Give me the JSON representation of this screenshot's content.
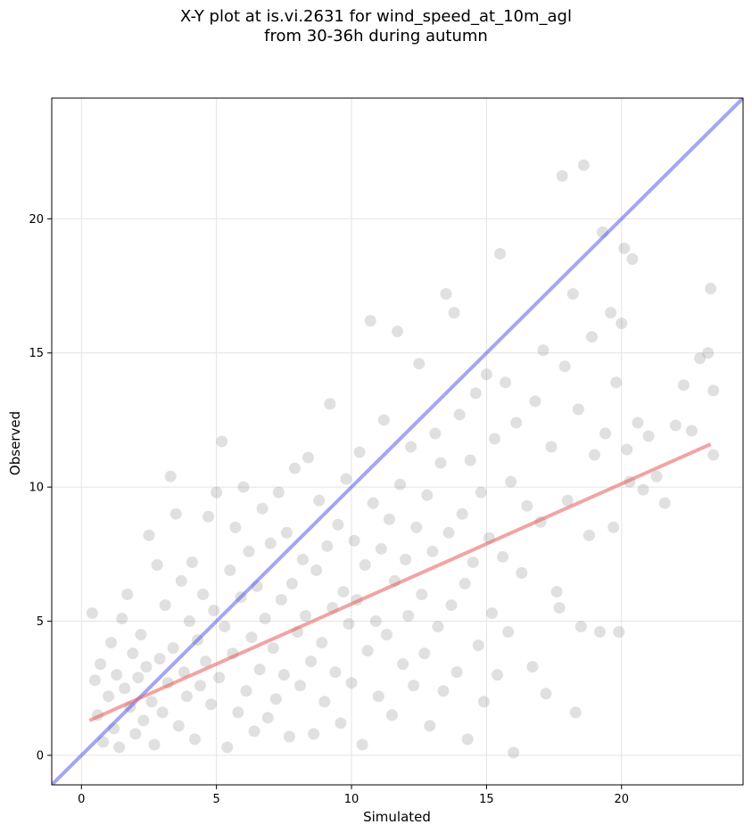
{
  "chart_data": {
    "type": "scatter",
    "title": "X-Y plot at is.vi.2631 for wind_speed_at_10m_agl",
    "subtitle": "from 30-36h during autumn",
    "xlabel": "Simulated",
    "ylabel": "Observed",
    "xlim": [
      -1.1,
      24.5
    ],
    "ylim": [
      -1.1,
      24.5
    ],
    "xticks": [
      0,
      5,
      10,
      15,
      20
    ],
    "yticks": [
      0,
      5,
      10,
      15,
      20
    ],
    "grid": true,
    "colors": {
      "points": "#555555",
      "identity_line": "#4b4bea",
      "fit_line": "#e85a5a"
    },
    "series": [
      {
        "kind": "points",
        "points_note_ref": "dense cloud of ~1500 points, sampled",
        "points": [
          [
            0.4,
            5.3
          ],
          [
            0.5,
            2.8
          ],
          [
            0.6,
            1.5
          ],
          [
            0.7,
            3.4
          ],
          [
            0.8,
            0.5
          ],
          [
            1.0,
            2.2
          ],
          [
            1.1,
            4.2
          ],
          [
            1.2,
            1.0
          ],
          [
            1.3,
            3.0
          ],
          [
            1.4,
            0.3
          ],
          [
            1.5,
            5.1
          ],
          [
            1.6,
            2.5
          ],
          [
            1.7,
            6.0
          ],
          [
            1.8,
            1.8
          ],
          [
            1.9,
            3.8
          ],
          [
            2.0,
            0.8
          ],
          [
            2.1,
            2.9
          ],
          [
            2.2,
            4.5
          ],
          [
            2.3,
            1.3
          ],
          [
            2.4,
            3.3
          ],
          [
            2.5,
            8.2
          ],
          [
            2.6,
            2.0
          ],
          [
            2.7,
            0.4
          ],
          [
            2.8,
            7.1
          ],
          [
            2.9,
            3.6
          ],
          [
            3.0,
            1.6
          ],
          [
            3.1,
            5.6
          ],
          [
            3.2,
            2.7
          ],
          [
            3.3,
            10.4
          ],
          [
            3.4,
            4.0
          ],
          [
            3.5,
            9.0
          ],
          [
            3.6,
            1.1
          ],
          [
            3.7,
            6.5
          ],
          [
            3.8,
            3.1
          ],
          [
            3.9,
            2.2
          ],
          [
            4.0,
            5.0
          ],
          [
            4.1,
            7.2
          ],
          [
            4.2,
            0.6
          ],
          [
            4.3,
            4.3
          ],
          [
            4.4,
            2.6
          ],
          [
            4.5,
            6.0
          ],
          [
            4.6,
            3.5
          ],
          [
            4.7,
            8.9
          ],
          [
            4.8,
            1.9
          ],
          [
            4.9,
            5.4
          ],
          [
            5.0,
            9.8
          ],
          [
            5.1,
            2.9
          ],
          [
            5.2,
            11.7
          ],
          [
            5.3,
            4.8
          ],
          [
            5.4,
            0.3
          ],
          [
            5.5,
            6.9
          ],
          [
            5.6,
            3.8
          ],
          [
            5.7,
            8.5
          ],
          [
            5.8,
            1.6
          ],
          [
            5.9,
            5.9
          ],
          [
            6.0,
            10.0
          ],
          [
            6.1,
            2.4
          ],
          [
            6.2,
            7.6
          ],
          [
            6.3,
            4.4
          ],
          [
            6.4,
            0.9
          ],
          [
            6.5,
            6.3
          ],
          [
            6.6,
            3.2
          ],
          [
            6.7,
            9.2
          ],
          [
            6.8,
            5.1
          ],
          [
            6.9,
            1.4
          ],
          [
            7.0,
            7.9
          ],
          [
            7.1,
            4.0
          ],
          [
            7.2,
            2.1
          ],
          [
            7.3,
            9.8
          ],
          [
            7.4,
            5.8
          ],
          [
            7.5,
            3.0
          ],
          [
            7.6,
            8.3
          ],
          [
            7.7,
            0.7
          ],
          [
            7.8,
            6.4
          ],
          [
            7.9,
            10.7
          ],
          [
            8.0,
            4.6
          ],
          [
            8.1,
            2.6
          ],
          [
            8.2,
            7.3
          ],
          [
            8.3,
            5.2
          ],
          [
            8.4,
            11.1
          ],
          [
            8.5,
            3.5
          ],
          [
            8.6,
            0.8
          ],
          [
            8.7,
            6.9
          ],
          [
            8.8,
            9.5
          ],
          [
            8.9,
            4.2
          ],
          [
            9.0,
            2.0
          ],
          [
            9.1,
            7.8
          ],
          [
            9.2,
            13.1
          ],
          [
            9.3,
            5.5
          ],
          [
            9.4,
            3.1
          ],
          [
            9.5,
            8.6
          ],
          [
            9.6,
            1.2
          ],
          [
            9.7,
            6.1
          ],
          [
            9.8,
            10.3
          ],
          [
            9.9,
            4.9
          ],
          [
            10.0,
            2.7
          ],
          [
            10.1,
            8.0
          ],
          [
            10.2,
            5.8
          ],
          [
            10.3,
            11.3
          ],
          [
            10.4,
            0.4
          ],
          [
            10.5,
            7.1
          ],
          [
            10.6,
            3.9
          ],
          [
            10.7,
            16.2
          ],
          [
            10.8,
            9.4
          ],
          [
            10.9,
            5.0
          ],
          [
            11.0,
            2.2
          ],
          [
            11.1,
            7.7
          ],
          [
            11.2,
            12.5
          ],
          [
            11.3,
            4.5
          ],
          [
            11.4,
            8.8
          ],
          [
            11.5,
            1.5
          ],
          [
            11.6,
            6.5
          ],
          [
            11.7,
            15.8
          ],
          [
            11.8,
            10.1
          ],
          [
            11.9,
            3.4
          ],
          [
            12.0,
            7.3
          ],
          [
            12.1,
            5.2
          ],
          [
            12.2,
            11.5
          ],
          [
            12.3,
            2.6
          ],
          [
            12.4,
            8.5
          ],
          [
            12.5,
            14.6
          ],
          [
            12.6,
            6.0
          ],
          [
            12.7,
            3.8
          ],
          [
            12.8,
            9.7
          ],
          [
            12.9,
            1.1
          ],
          [
            13.0,
            7.6
          ],
          [
            13.1,
            12.0
          ],
          [
            13.2,
            4.8
          ],
          [
            13.3,
            10.9
          ],
          [
            13.4,
            2.4
          ],
          [
            13.5,
            17.2
          ],
          [
            13.6,
            8.3
          ],
          [
            13.7,
            5.6
          ],
          [
            13.8,
            16.5
          ],
          [
            13.9,
            3.1
          ],
          [
            14.0,
            12.7
          ],
          [
            14.1,
            9.0
          ],
          [
            14.2,
            6.4
          ],
          [
            14.3,
            0.6
          ],
          [
            14.4,
            11.0
          ],
          [
            14.5,
            7.2
          ],
          [
            14.6,
            13.5
          ],
          [
            14.7,
            4.1
          ],
          [
            14.8,
            9.8
          ],
          [
            14.9,
            2.0
          ],
          [
            15.0,
            14.2
          ],
          [
            15.1,
            8.1
          ],
          [
            15.2,
            5.3
          ],
          [
            15.3,
            11.8
          ],
          [
            15.4,
            3.0
          ],
          [
            15.5,
            18.7
          ],
          [
            15.6,
            7.4
          ],
          [
            15.7,
            13.9
          ],
          [
            15.8,
            4.6
          ],
          [
            15.9,
            10.2
          ],
          [
            16.0,
            0.1
          ],
          [
            16.1,
            12.4
          ],
          [
            16.3,
            6.8
          ],
          [
            16.5,
            9.3
          ],
          [
            16.7,
            3.3
          ],
          [
            16.8,
            13.2
          ],
          [
            17.0,
            8.7
          ],
          [
            17.1,
            15.1
          ],
          [
            17.2,
            2.3
          ],
          [
            17.4,
            11.5
          ],
          [
            17.6,
            6.1
          ],
          [
            17.7,
            5.5
          ],
          [
            17.8,
            21.6
          ],
          [
            17.9,
            14.5
          ],
          [
            18.0,
            9.5
          ],
          [
            18.2,
            17.2
          ],
          [
            18.3,
            1.6
          ],
          [
            18.4,
            12.9
          ],
          [
            18.5,
            4.8
          ],
          [
            18.6,
            22.0
          ],
          [
            18.8,
            8.2
          ],
          [
            18.9,
            15.6
          ],
          [
            19.0,
            11.2
          ],
          [
            19.2,
            4.6
          ],
          [
            19.3,
            19.5
          ],
          [
            19.4,
            12.0
          ],
          [
            19.6,
            16.5
          ],
          [
            19.7,
            8.5
          ],
          [
            19.8,
            13.9
          ],
          [
            19.9,
            4.6
          ],
          [
            20.0,
            16.1
          ],
          [
            20.1,
            18.9
          ],
          [
            20.2,
            11.4
          ],
          [
            20.3,
            10.2
          ],
          [
            20.4,
            18.5
          ],
          [
            20.6,
            12.4
          ],
          [
            20.8,
            9.9
          ],
          [
            21.0,
            11.9
          ],
          [
            21.3,
            10.4
          ],
          [
            21.6,
            9.4
          ],
          [
            22.0,
            12.3
          ],
          [
            22.3,
            13.8
          ],
          [
            22.6,
            12.1
          ],
          [
            22.9,
            14.8
          ],
          [
            23.2,
            15.0
          ],
          [
            23.3,
            17.4
          ],
          [
            23.4,
            13.6
          ],
          [
            23.4,
            11.2
          ]
        ]
      },
      {
        "kind": "line",
        "points": [
          [
            -1.1,
            -1.1
          ],
          [
            24.5,
            24.5
          ]
        ]
      },
      {
        "kind": "line",
        "points": [
          [
            0.3,
            1.3
          ],
          [
            23.3,
            11.6
          ]
        ]
      }
    ]
  }
}
